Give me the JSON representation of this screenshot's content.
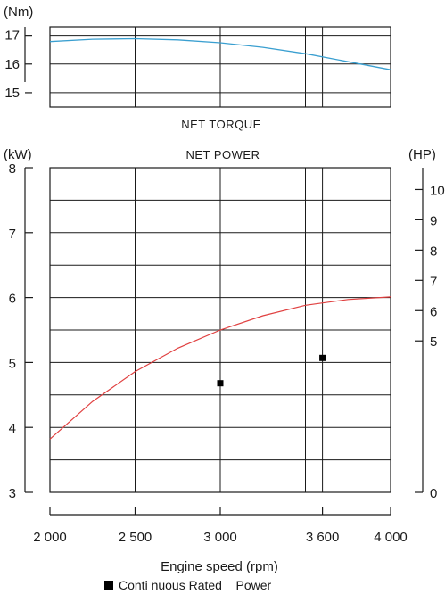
{
  "chart_data": [
    {
      "id": "torque",
      "type": "line",
      "title": "NET TORQUE",
      "y_unit": "(Nm)",
      "xlim": [
        2000,
        4000
      ],
      "ylim": [
        14.5,
        17.3
      ],
      "yticks": [
        {
          "value": 17,
          "label": "17"
        },
        {
          "value": 16,
          "label": "16"
        },
        {
          "value": 15,
          "label": "15"
        }
      ],
      "series": [
        {
          "color": "#3a9fd0",
          "points": [
            [
              2000,
              16.78
            ],
            [
              2250,
              16.86
            ],
            [
              2500,
              16.88
            ],
            [
              2750,
              16.84
            ],
            [
              3000,
              16.74
            ],
            [
              3250,
              16.58
            ],
            [
              3500,
              16.36
            ],
            [
              3750,
              16.08
            ],
            [
              4000,
              15.8
            ]
          ]
        }
      ]
    },
    {
      "id": "power",
      "type": "line",
      "title": "NET POWER",
      "y_unit": "(kW)",
      "y2_unit": "(HP)",
      "xlim": [
        2000,
        4000
      ],
      "ylim": [
        3,
        8
      ],
      "y2lim": [
        0,
        10.72
      ],
      "yticks": [
        {
          "value": 8,
          "label": "8"
        },
        {
          "value": 7,
          "label": "7"
        },
        {
          "value": 6,
          "label": "6"
        },
        {
          "value": 5,
          "label": "5"
        },
        {
          "value": 4,
          "label": "4"
        },
        {
          "value": 3,
          "label": "3"
        }
      ],
      "y2ticks": [
        {
          "value": 10,
          "label": "10"
        },
        {
          "value": 9,
          "label": "9"
        },
        {
          "value": 8,
          "label": "8"
        },
        {
          "value": 7,
          "label": "7"
        },
        {
          "value": 6,
          "label": "6"
        },
        {
          "value": 5,
          "label": "5"
        },
        {
          "value": 0,
          "label": "0"
        }
      ],
      "xticks": [
        {
          "value": 2000,
          "label": "2 000"
        },
        {
          "value": 2500,
          "label": "2 500"
        },
        {
          "value": 3000,
          "label": "3 000"
        },
        {
          "value": 3600,
          "label": "3 600"
        },
        {
          "value": 4000,
          "label": "4 000"
        }
      ],
      "xlabel": "Engine speed (rpm)",
      "series": [
        {
          "color": "#e04040",
          "points": [
            [
              2000,
              3.82
            ],
            [
              2250,
              4.4
            ],
            [
              2500,
              4.86
            ],
            [
              2750,
              5.22
            ],
            [
              3000,
              5.5
            ],
            [
              3250,
              5.72
            ],
            [
              3500,
              5.88
            ],
            [
              3750,
              5.97
            ],
            [
              4000,
              6.01
            ]
          ]
        }
      ],
      "markers": [
        {
          "x": 3000,
          "y": 4.68
        },
        {
          "x": 3600,
          "y": 5.07
        }
      ],
      "legend": {
        "marker": "square",
        "label": "Conti nuous Rated    Power",
        "position": "bottom"
      }
    }
  ]
}
